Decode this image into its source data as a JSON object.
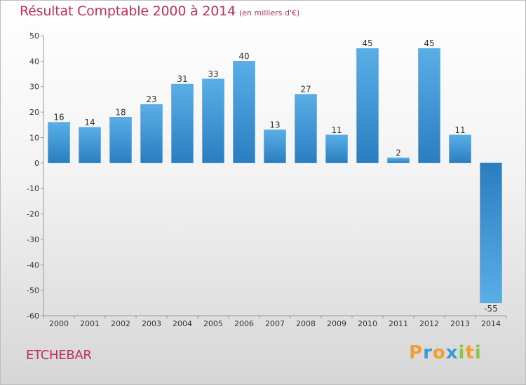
{
  "title": "Résultat Comptable 2000 à 2014",
  "subtitle": "(en milliers d'€)",
  "commune": "ETCHEBAR",
  "logo": {
    "text": "Proxiti",
    "letters": [
      "P",
      "r",
      "o",
      "x",
      "i",
      "t",
      "i"
    ],
    "colors": [
      "#f0a030",
      "#3a9ad8",
      "#f0a030",
      "#3a9ad8",
      "#8cc63f",
      "#f0a030",
      "#8cc63f"
    ]
  },
  "colors": {
    "bar_light": "#5aaee6",
    "bar_dark": "#2a7ec0",
    "title": "#c0305a",
    "grid": "#cccccc"
  },
  "chart_data": {
    "type": "bar",
    "title": "Résultat Comptable 2000 à 2014",
    "xlabel": "",
    "ylabel": "",
    "categories": [
      "2000",
      "2001",
      "2002",
      "2003",
      "2004",
      "2005",
      "2006",
      "2007",
      "2008",
      "2009",
      "2010",
      "2011",
      "2012",
      "2013",
      "2014"
    ],
    "values": [
      16,
      14,
      18,
      23,
      31,
      33,
      40,
      13,
      27,
      11,
      45,
      2,
      45,
      11,
      -55
    ],
    "ylim": [
      -60,
      50
    ],
    "yticks": [
      50,
      40,
      30,
      20,
      10,
      0,
      -10,
      -20,
      -30,
      -40,
      -50,
      -60
    ],
    "grid": false
  }
}
